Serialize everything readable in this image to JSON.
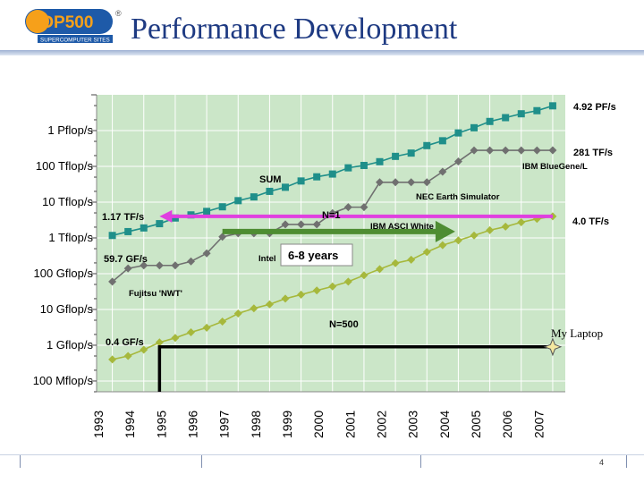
{
  "header": {
    "title": "Performance Development",
    "logo": {
      "text": "TOP500",
      "subtitle": "SUPERCOMPUTER SITES",
      "registered": "®"
    }
  },
  "footer": {
    "page_number": "4"
  },
  "chart_data": {
    "type": "line",
    "title": "",
    "xlabel": "",
    "ylabel": "",
    "y_scale": "log",
    "y_unit": "flop/s",
    "x": [
      1993,
      1994,
      1995,
      1996,
      1997,
      1998,
      1999,
      2000,
      2001,
      2002,
      2003,
      2004,
      2005,
      2006,
      2007
    ],
    "xlim": [
      1993,
      2007.9
    ],
    "ylim": [
      0.05,
      10000000
    ],
    "ytick_labels": [
      {
        "value": 1000000,
        "label": "1 Pflop/s"
      },
      {
        "value": 100000,
        "label": "100 Tflop/s"
      },
      {
        "value": 10000,
        "label": "10 Tflop/s"
      },
      {
        "value": 1000,
        "label": "1 Tflop/s"
      },
      {
        "value": 100,
        "label": "100 Gflop/s"
      },
      {
        "value": 10,
        "label": "10 Gflop/s"
      },
      {
        "value": 1,
        "label": "1 Gflop/s"
      },
      {
        "value": 0.1,
        "label": "100 Mflop/s"
      }
    ],
    "series": [
      {
        "name": "SUM",
        "color": "#1f8f8a",
        "marker": "square",
        "x": [
          1993.5,
          1994.0,
          1994.5,
          1995.0,
          1995.5,
          1996.0,
          1996.5,
          1997.0,
          1997.5,
          1998.0,
          1998.5,
          1999.0,
          1999.5,
          2000.0,
          2000.5,
          2001.0,
          2001.5,
          2002.0,
          2002.5,
          2003.0,
          2003.5,
          2004.0,
          2004.5,
          2005.0,
          2005.5,
          2006.0,
          2006.5,
          2007.0,
          2007.5
        ],
        "values": [
          1170,
          1500,
          1900,
          2500,
          3600,
          4400,
          5500,
          7400,
          11000,
          14000,
          20000,
          26000,
          39000,
          51000,
          61000,
          91000,
          106000,
          135000,
          190000,
          235000,
          380000,
          520000,
          860000,
          1200000,
          1800000,
          2300000,
          2950000,
          3600000,
          4920000
        ]
      },
      {
        "name": "N=1",
        "color": "#707070",
        "marker": "diamond",
        "x": [
          1993.5,
          1994.0,
          1994.5,
          1995.0,
          1995.5,
          1996.0,
          1996.5,
          1997.0,
          1997.5,
          1998.0,
          1998.5,
          1999.0,
          1999.5,
          2000.0,
          2000.5,
          2001.0,
          2001.5,
          2002.0,
          2002.5,
          2003.0,
          2003.5,
          2004.0,
          2004.5,
          2005.0,
          2005.5,
          2006.0,
          2006.5,
          2007.0,
          2007.5
        ],
        "values": [
          59.7,
          140,
          170,
          170,
          170,
          220,
          370,
          1070,
          1340,
          1340,
          1340,
          2380,
          2380,
          2380,
          4940,
          7230,
          7230,
          35860,
          35860,
          35860,
          35860,
          70720,
          136800,
          280600,
          280600,
          280600,
          280600,
          280600,
          281000
        ]
      },
      {
        "name": "N=500",
        "color": "#a6b83c",
        "marker": "diamond",
        "x": [
          1993.5,
          1994.0,
          1994.5,
          1995.0,
          1995.5,
          1996.0,
          1996.5,
          1997.0,
          1997.5,
          1998.0,
          1998.5,
          1999.0,
          1999.5,
          2000.0,
          2000.5,
          2001.0,
          2001.5,
          2002.0,
          2002.5,
          2003.0,
          2003.5,
          2004.0,
          2004.5,
          2005.0,
          2005.5,
          2006.0,
          2006.5,
          2007.0,
          2007.5
        ],
        "values": [
          0.4,
          0.5,
          0.75,
          1.2,
          1.6,
          2.3,
          3.1,
          4.6,
          7.7,
          10.7,
          13.9,
          20,
          26,
          34,
          44,
          60,
          90,
          134,
          196,
          245,
          403,
          624,
          851,
          1170,
          1640,
          2060,
          2740,
          3400,
          4000
        ]
      }
    ],
    "value_labels": [
      {
        "series": "SUM",
        "text": "4.92 PF/s"
      },
      {
        "series": "N=1",
        "text": "281 TF/s"
      },
      {
        "series": "N=500",
        "text": "4.0 TF/s"
      },
      {
        "series": "SUM",
        "text": "1.17 TF/s"
      },
      {
        "series": "N=1",
        "text": "59.7 GF/s"
      },
      {
        "series": "N=500",
        "text": "0.4 GF/s"
      }
    ],
    "annotations": [
      "IBM BlueGene/L",
      "NEC Earth Simulator",
      "IBM ASCI White",
      "Intel",
      "Fujitsu 'NWT'",
      "6-8 years",
      "My Laptop"
    ],
    "laptop_point": {
      "label": "My Laptop",
      "x": 2007.5,
      "y": 0.9
    },
    "laptop_bracket": {
      "x_start": 1995,
      "x_end": 2007.5,
      "y": 0.9
    },
    "gap_arrow": {
      "label": "6-8 years",
      "x_from": 2007.5,
      "x_to": 1995.0,
      "y": 4000
    },
    "shift_arrow": {
      "label": "6-8 years",
      "x_from": 1997.0,
      "x_to": 2004.4,
      "y": 1500
    },
    "colors": {
      "plot_background": "#cbe6c8",
      "sum": "#1f8f8a",
      "n1": "#707070",
      "n500": "#a6b83c",
      "pink_arrow": "#e040e0",
      "green_arrow": "#4e8d32"
    }
  }
}
